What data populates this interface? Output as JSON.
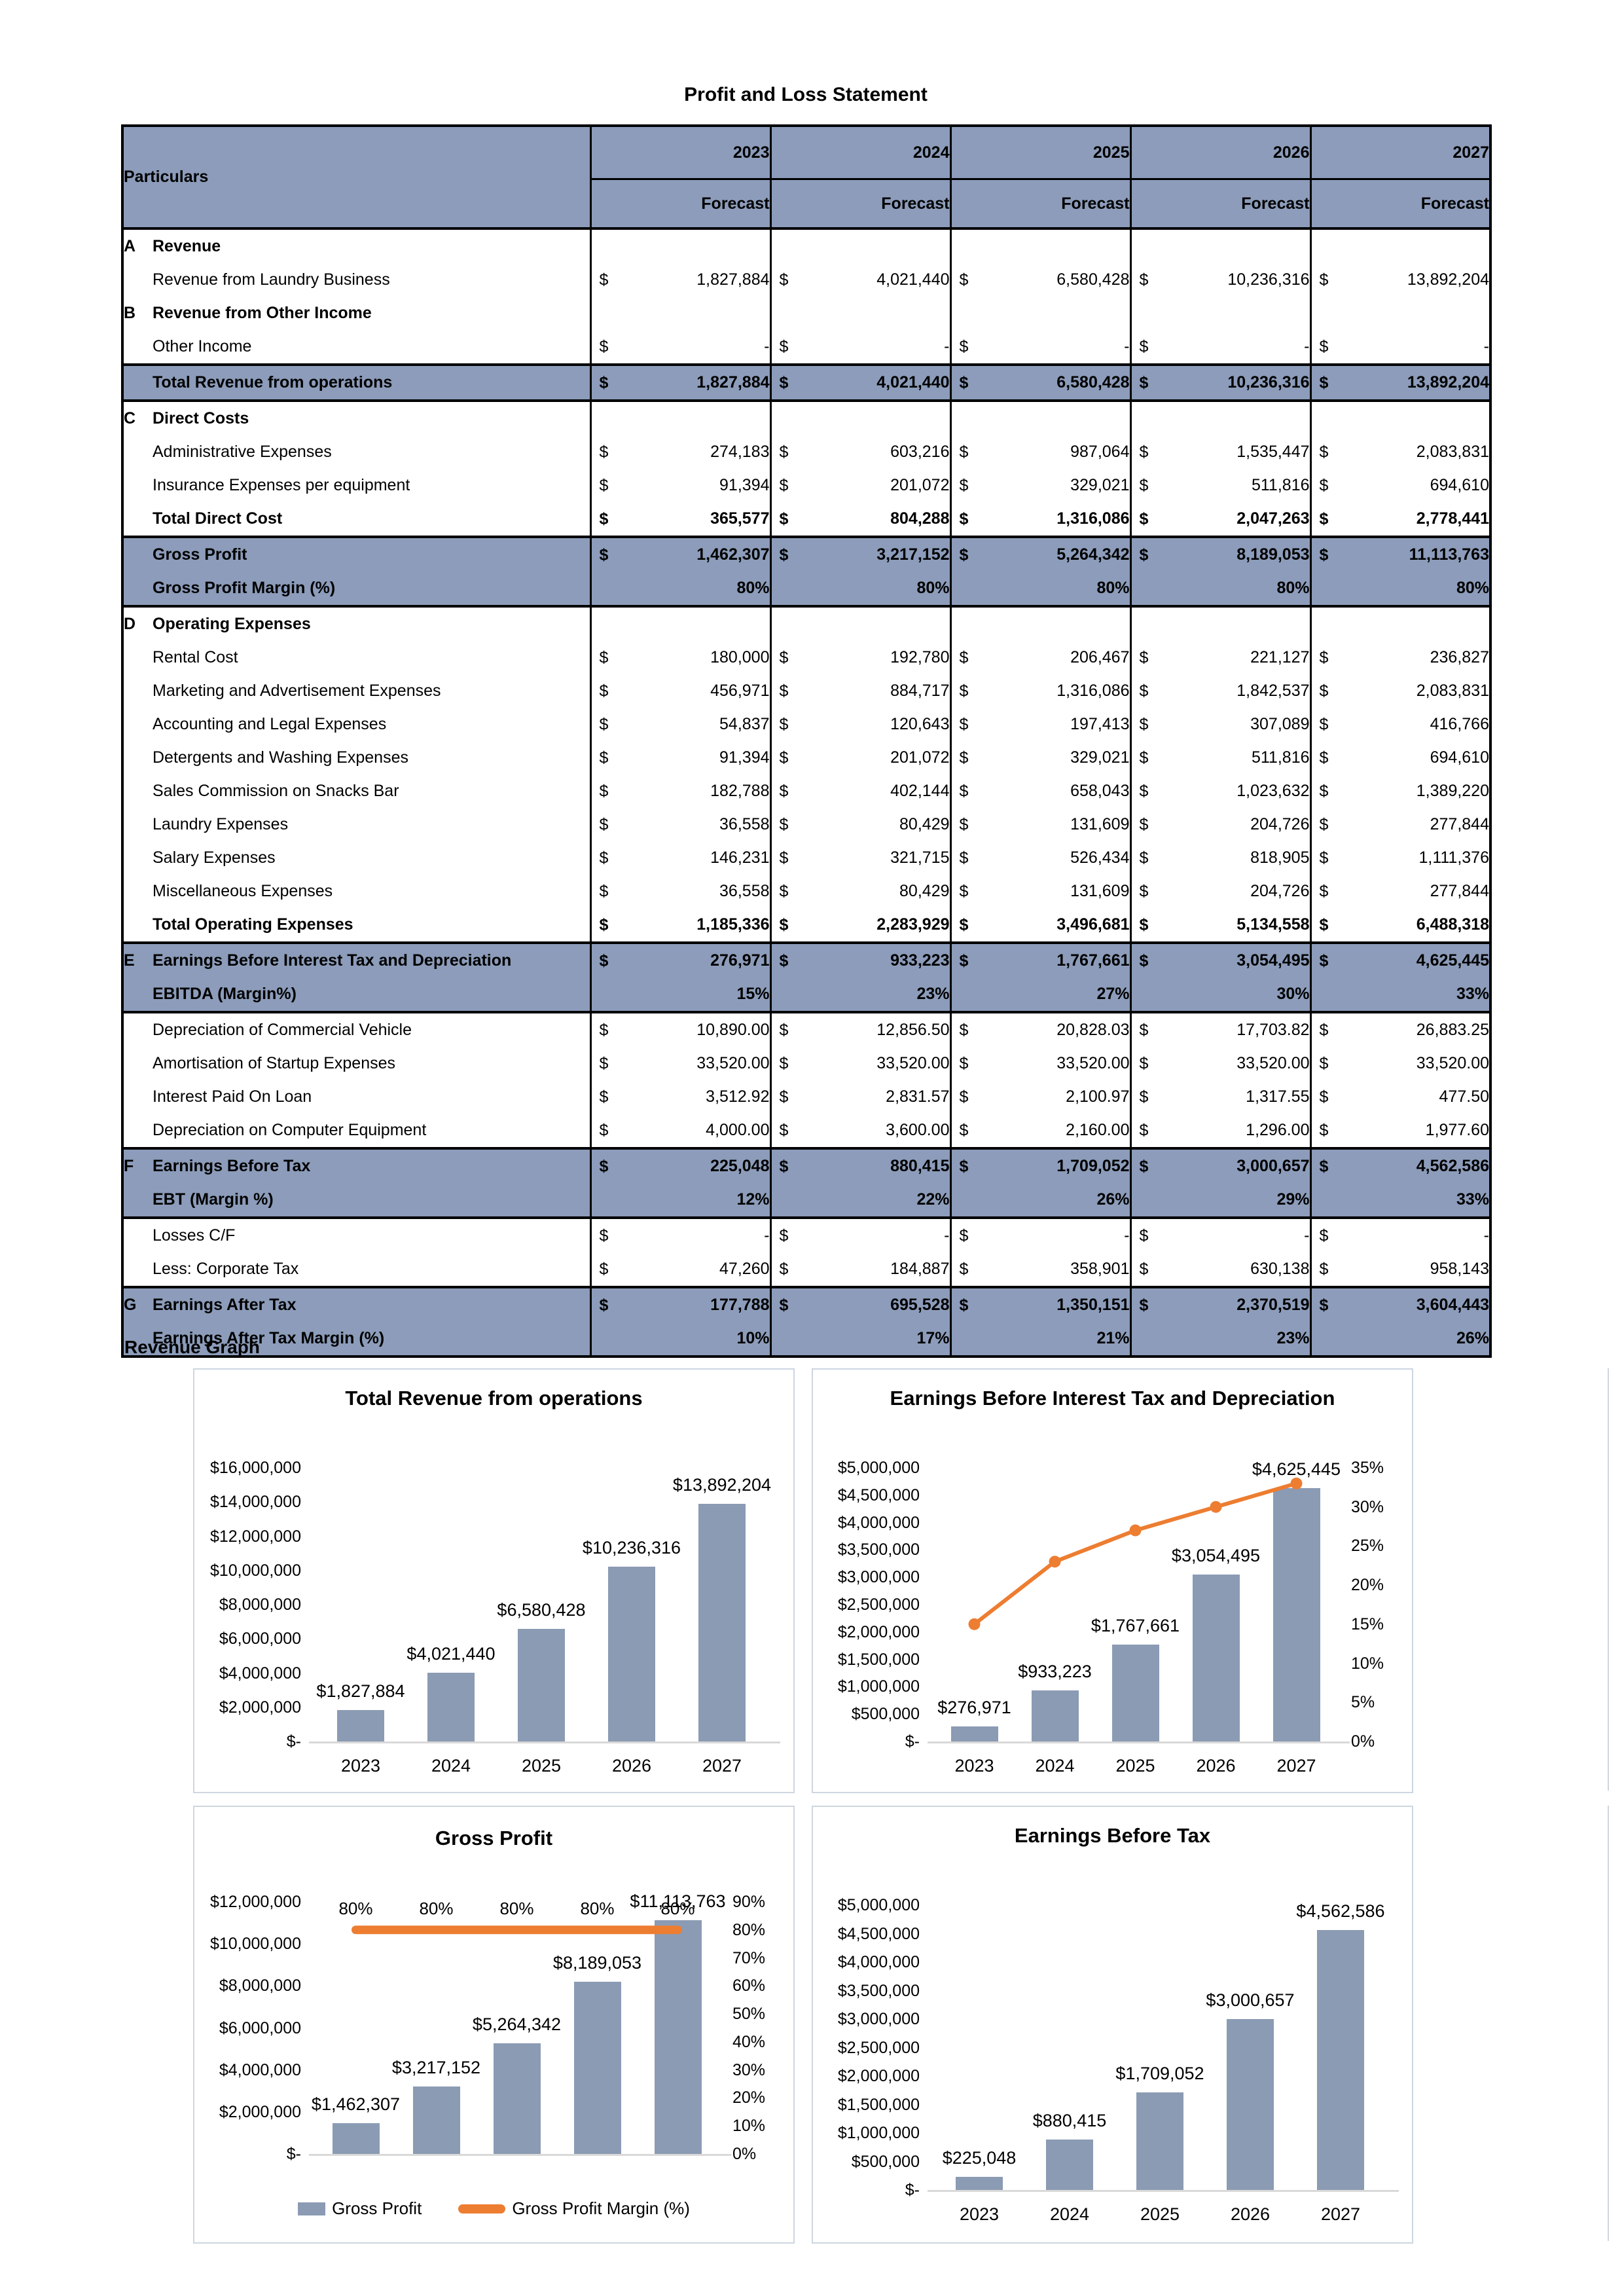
{
  "page": {
    "title": "Profit and Loss Statement",
    "revenue_graph_label": "Revenue Graph"
  },
  "colors": {
    "header_fill": "#8C9CBA",
    "bar_color": "#8B9BB4",
    "accent_orange": "#ED7D31",
    "chart_border": "#CDD6E0",
    "axis_line": "#D9D9D9"
  },
  "table": {
    "header": {
      "particulars": "Particulars",
      "years": [
        "2023",
        "2024",
        "2025",
        "2026",
        "2027"
      ],
      "subheader": "Forecast"
    },
    "rows": [
      {
        "type": "section",
        "letter": "A",
        "label": "Revenue"
      },
      {
        "type": "money",
        "label": "Revenue from Laundry Business",
        "values": [
          "1,827,884",
          "4,021,440",
          "6,580,428",
          "10,236,316",
          "13,892,204"
        ]
      },
      {
        "type": "section",
        "letter": "B",
        "label": "Revenue from Other Income"
      },
      {
        "type": "money",
        "label": "Other Income",
        "values": [
          "-",
          "-",
          "-",
          "-",
          "-"
        ]
      },
      {
        "type": "money",
        "label": "Total Revenue from operations",
        "highlight": true,
        "values": [
          "1,827,884",
          "4,021,440",
          "6,580,428",
          "10,236,316",
          "13,892,204"
        ]
      },
      {
        "type": "section",
        "letter": "C",
        "label": "Direct Costs"
      },
      {
        "type": "money",
        "label": "Administrative Expenses",
        "values": [
          "274,183",
          "603,216",
          "987,064",
          "1,535,447",
          "2,083,831"
        ]
      },
      {
        "type": "money",
        "label": "Insurance Expenses per equipment",
        "values": [
          "91,394",
          "201,072",
          "329,021",
          "511,816",
          "694,610"
        ]
      },
      {
        "type": "money",
        "label": "Total Direct Cost",
        "bold": true,
        "values": [
          "365,577",
          "804,288",
          "1,316,086",
          "2,047,263",
          "2,778,441"
        ]
      },
      {
        "type": "money",
        "label": "Gross Profit",
        "highlight": true,
        "values": [
          "1,462,307",
          "3,217,152",
          "5,264,342",
          "8,189,053",
          "11,113,763"
        ]
      },
      {
        "type": "percent",
        "label": "Gross Profit Margin (%)",
        "highlight": true,
        "values": [
          "80%",
          "80%",
          "80%",
          "80%",
          "80%"
        ]
      },
      {
        "type": "section",
        "letter": "D",
        "label": "Operating Expenses"
      },
      {
        "type": "money",
        "label": "Rental Cost",
        "values": [
          "180,000",
          "192,780",
          "206,467",
          "221,127",
          "236,827"
        ]
      },
      {
        "type": "money",
        "label": "Marketing and Advertisement Expenses",
        "values": [
          "456,971",
          "884,717",
          "1,316,086",
          "1,842,537",
          "2,083,831"
        ]
      },
      {
        "type": "money",
        "label": "Accounting and Legal Expenses",
        "values": [
          "54,837",
          "120,643",
          "197,413",
          "307,089",
          "416,766"
        ]
      },
      {
        "type": "money",
        "label": "Detergents and Washing Expenses",
        "values": [
          "91,394",
          "201,072",
          "329,021",
          "511,816",
          "694,610"
        ]
      },
      {
        "type": "money",
        "label": "Sales Commission on Snacks Bar",
        "values": [
          "182,788",
          "402,144",
          "658,043",
          "1,023,632",
          "1,389,220"
        ]
      },
      {
        "type": "money",
        "label": "Laundry Expenses",
        "values": [
          "36,558",
          "80,429",
          "131,609",
          "204,726",
          "277,844"
        ]
      },
      {
        "type": "money",
        "label": "Salary Expenses",
        "values": [
          "146,231",
          "321,715",
          "526,434",
          "818,905",
          "1,111,376"
        ]
      },
      {
        "type": "money",
        "label": "Miscellaneous Expenses",
        "values": [
          "36,558",
          "80,429",
          "131,609",
          "204,726",
          "277,844"
        ]
      },
      {
        "type": "money",
        "label": "Total Operating Expenses",
        "bold": true,
        "values": [
          "1,185,336",
          "2,283,929",
          "3,496,681",
          "5,134,558",
          "6,488,318"
        ]
      },
      {
        "type": "money",
        "letter": "E",
        "label": "Earnings Before Interest Tax and Depreciation",
        "highlight": true,
        "values": [
          "276,971",
          "933,223",
          "1,767,661",
          "3,054,495",
          "4,625,445"
        ]
      },
      {
        "type": "percent",
        "label": "EBITDA (Margin%)",
        "highlight": true,
        "values": [
          "15%",
          "23%",
          "27%",
          "30%",
          "33%"
        ]
      },
      {
        "type": "money",
        "label": "Depreciation of Commercial Vehicle",
        "values": [
          "10,890.00",
          "12,856.50",
          "20,828.03",
          "17,703.82",
          "26,883.25"
        ]
      },
      {
        "type": "money",
        "label": "Amortisation of Startup Expenses",
        "values": [
          "33,520.00",
          "33,520.00",
          "33,520.00",
          "33,520.00",
          "33,520.00"
        ]
      },
      {
        "type": "money",
        "label": "Interest Paid On Loan",
        "values": [
          "3,512.92",
          "2,831.57",
          "2,100.97",
          "1,317.55",
          "477.50"
        ]
      },
      {
        "type": "money",
        "label": "Depreciation on Computer Equipment",
        "values": [
          "4,000.00",
          "3,600.00",
          "2,160.00",
          "1,296.00",
          "1,977.60"
        ]
      },
      {
        "type": "money",
        "letter": "F",
        "label": "Earnings Before Tax",
        "highlight": true,
        "values": [
          "225,048",
          "880,415",
          "1,709,052",
          "3,000,657",
          "4,562,586"
        ]
      },
      {
        "type": "percent",
        "label": "EBT (Margin %)",
        "highlight": true,
        "values": [
          "12%",
          "22%",
          "26%",
          "29%",
          "33%"
        ]
      },
      {
        "type": "money",
        "label": "Losses C/F",
        "values": [
          "-",
          "-",
          "-",
          "-",
          "-"
        ]
      },
      {
        "type": "money",
        "label": "Less: Corporate Tax",
        "values": [
          "47,260",
          "184,887",
          "358,901",
          "630,138",
          "958,143"
        ]
      },
      {
        "type": "money",
        "letter": "G",
        "label": "Earnings After Tax",
        "highlight": true,
        "values": [
          "177,788",
          "695,528",
          "1,350,151",
          "2,370,519",
          "3,604,443"
        ]
      },
      {
        "type": "percent",
        "label": "Earnings After Tax Margin (%)",
        "highlight": true,
        "values": [
          "10%",
          "17%",
          "21%",
          "23%",
          "26%"
        ]
      }
    ]
  },
  "chart_data": [
    {
      "type": "bar",
      "title": "Total Revenue from operations",
      "categories": [
        "2023",
        "2024",
        "2025",
        "2026",
        "2027"
      ],
      "values": [
        1827884,
        4021440,
        6580428,
        10236316,
        13892204
      ],
      "value_labels": [
        "$1,827,884",
        "$4,021,440",
        "$6,580,428",
        "$10,236,316",
        "$13,892,204"
      ],
      "xlabel": "",
      "ylabel": "",
      "ylim": [
        0,
        16000000
      ],
      "yticks": [
        "$16,000,000",
        "$14,000,000",
        "$12,000,000",
        "$10,000,000",
        "$8,000,000",
        "$6,000,000",
        "$4,000,000",
        "$2,000,000",
        "$-"
      ],
      "grid": false,
      "legend_position": "none"
    },
    {
      "type": "bar+line",
      "title": "Earnings Before Interest Tax and Depreciation",
      "categories": [
        "2023",
        "2024",
        "2025",
        "2026",
        "2027"
      ],
      "series": [
        {
          "name": "Earnings Before Interest Tax and Depreciation",
          "type": "bar",
          "values": [
            276971,
            933223,
            1767661,
            3054495,
            4625445
          ],
          "value_labels": [
            "$276,971",
            "$933,223",
            "$1,767,661",
            "$3,054,495",
            "$4,625,445"
          ]
        },
        {
          "name": "EBITDA Margin (%)",
          "type": "line",
          "values": [
            15,
            23,
            27,
            30,
            33
          ]
        }
      ],
      "xlabel": "",
      "ylabel": "",
      "ylim_left": [
        0,
        5000000
      ],
      "ylim_right": [
        0,
        35
      ],
      "yticks_left": [
        "$5,000,000",
        "$4,500,000",
        "$4,000,000",
        "$3,500,000",
        "$3,000,000",
        "$2,500,000",
        "$2,000,000",
        "$1,500,000",
        "$1,000,000",
        "$500,000",
        "$-"
      ],
      "yticks_right": [
        "35%",
        "30%",
        "25%",
        "20%",
        "15%",
        "10%",
        "5%",
        "0%"
      ],
      "grid": false,
      "legend_position": "none"
    },
    {
      "type": "bar+line",
      "title": "Gross Profit",
      "categories": [
        "2023",
        "2024",
        "2025",
        "2026",
        "2027"
      ],
      "series": [
        {
          "name": "Gross Profit",
          "type": "bar",
          "values": [
            1462307,
            3217152,
            5264342,
            8189053,
            11113763
          ],
          "value_labels": [
            "$1,462,307",
            "$3,217,152",
            "$5,264,342",
            "$8,189,053",
            "$11,113,763"
          ]
        },
        {
          "name": "Gross Profit Margin (%)",
          "type": "line",
          "values": [
            80,
            80,
            80,
            80,
            80
          ],
          "point_labels": [
            "80%",
            "80%",
            "80%",
            "80%",
            "80%"
          ]
        }
      ],
      "xlabel": "",
      "ylabel": "",
      "ylim_left": [
        0,
        12000000
      ],
      "ylim_right": [
        0,
        90
      ],
      "yticks_left": [
        "$12,000,000",
        "$10,000,000",
        "$8,000,000",
        "$6,000,000",
        "$4,000,000",
        "$2,000,000",
        "$-"
      ],
      "yticks_right": [
        "90%",
        "80%",
        "70%",
        "60%",
        "50%",
        "40%",
        "30%",
        "20%",
        "10%",
        "0%"
      ],
      "grid": false,
      "legend_position": "bottom",
      "legend": [
        "Gross Profit",
        "Gross Profit Margin (%)"
      ]
    },
    {
      "type": "bar",
      "title": "Earnings Before Tax",
      "categories": [
        "2023",
        "2024",
        "2025",
        "2026",
        "2027"
      ],
      "values": [
        225048,
        880415,
        1709052,
        3000657,
        4562586
      ],
      "value_labels": [
        "$225,048",
        "$880,415",
        "$1,709,052",
        "$3,000,657",
        "$4,562,586"
      ],
      "xlabel": "",
      "ylabel": "",
      "ylim": [
        0,
        5000000
      ],
      "yticks": [
        "$5,000,000",
        "$4,500,000",
        "$4,000,000",
        "$3,500,000",
        "$3,000,000",
        "$2,500,000",
        "$2,000,000",
        "$1,500,000",
        "$1,000,000",
        "$500,000",
        "$-"
      ],
      "grid": false,
      "legend_position": "none"
    }
  ]
}
